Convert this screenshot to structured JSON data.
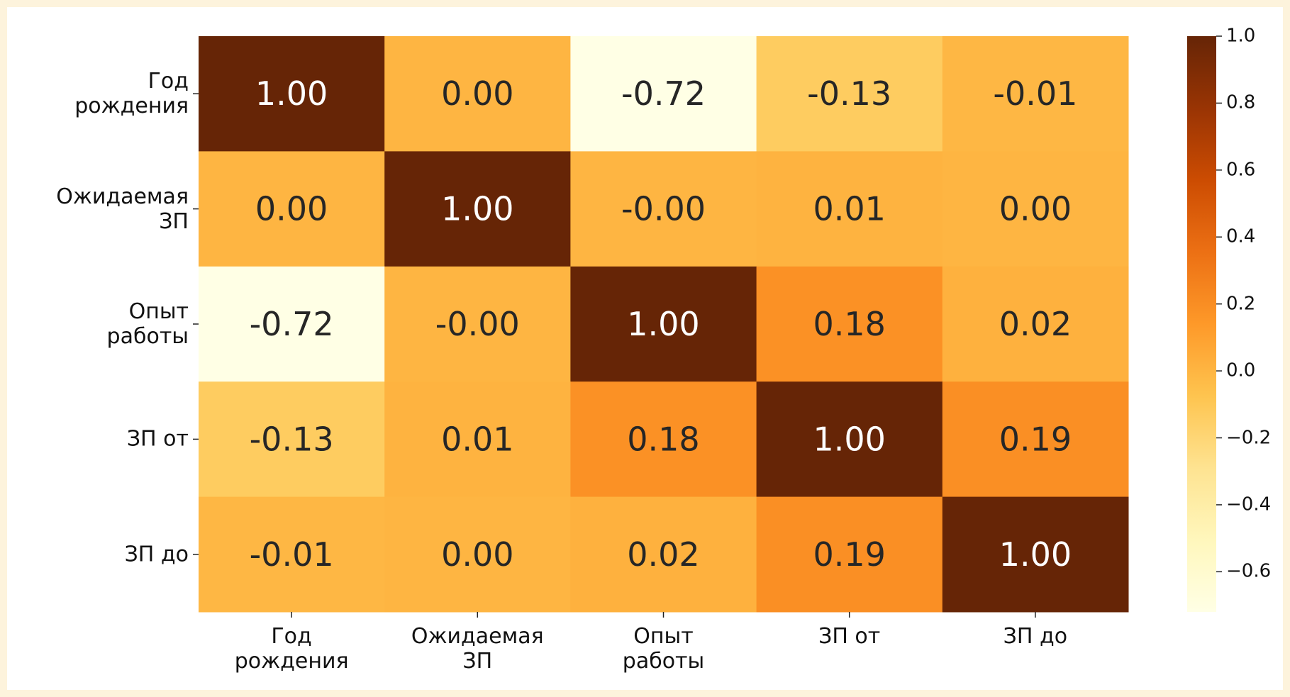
{
  "chart_data": {
    "type": "heatmap",
    "x": [
      "Год\nрождения",
      "Ожидаемая\nЗП",
      "Опыт\nработы",
      "ЗП от",
      "ЗП до"
    ],
    "categories": [
      "Год\nрождения",
      "Ожидаемая\nЗП",
      "Опыт\nработы",
      "ЗП от",
      "ЗП до"
    ],
    "values": [
      [
        1.0,
        0.0,
        -0.72,
        -0.13,
        -0.01
      ],
      [
        0.0,
        1.0,
        0.0,
        0.01,
        0.0
      ],
      [
        -0.72,
        0.0,
        1.0,
        0.18,
        0.02
      ],
      [
        -0.13,
        0.01,
        0.18,
        1.0,
        0.19
      ],
      [
        -0.01,
        0.0,
        0.02,
        0.19,
        1.0
      ]
    ],
    "value_labels": [
      [
        "1.00",
        "0.00",
        "-0.72",
        "-0.13",
        "-0.01"
      ],
      [
        "0.00",
        "1.00",
        "-0.00",
        "0.01",
        "0.00"
      ],
      [
        "-0.72",
        "-0.00",
        "1.00",
        "0.18",
        "0.02"
      ],
      [
        "-0.13",
        "0.01",
        "0.18",
        "1.00",
        "0.19"
      ],
      [
        "-0.01",
        "0.00",
        "0.02",
        "0.19",
        "1.00"
      ]
    ],
    "colormap": "YlOrBr",
    "zlim": [
      -0.72,
      1.0
    ],
    "zticks": [
      {
        "value": 1.0,
        "label": "1.0"
      },
      {
        "value": 0.8,
        "label": "0.8"
      },
      {
        "value": 0.6,
        "label": "0.6"
      },
      {
        "value": 0.4,
        "label": "0.4"
      },
      {
        "value": 0.2,
        "label": "0.2"
      },
      {
        "value": 0.0,
        "label": "0.0"
      },
      {
        "value": -0.2,
        "label": "−0.2"
      },
      {
        "value": -0.4,
        "label": "−0.4"
      },
      {
        "value": -0.6,
        "label": "−0.6"
      }
    ]
  }
}
